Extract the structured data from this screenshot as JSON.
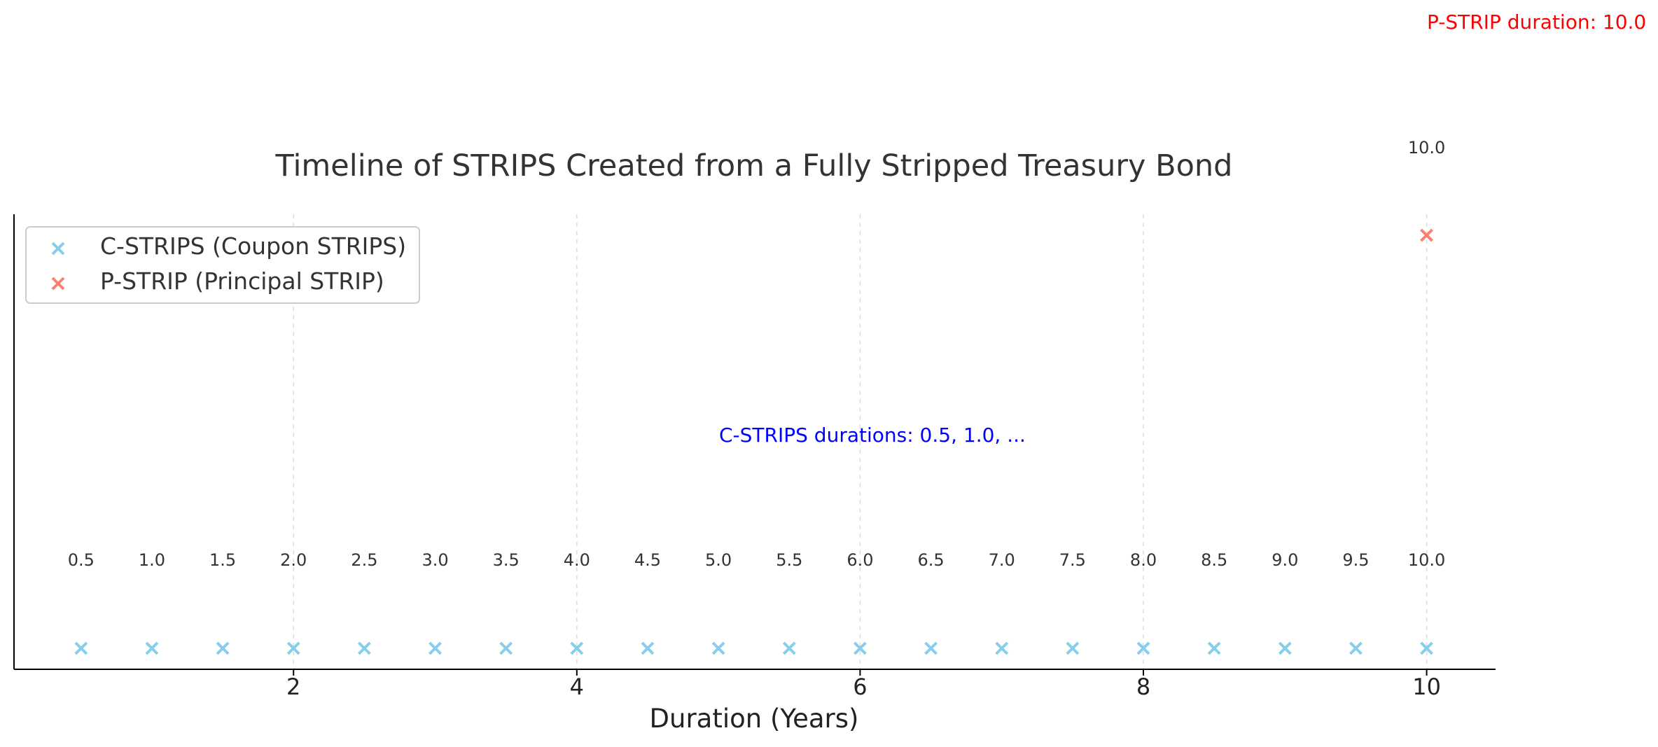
{
  "chart_data": {
    "type": "scatter",
    "title": "Timeline of STRIPS Created from a Fully Stripped Treasury Bond",
    "xlabel": "Duration (Years)",
    "ylabel": "",
    "xlim": [
      0.0,
      10.5
    ],
    "ylim": [
      0.98,
      1.15
    ],
    "x_ticks": [
      2,
      4,
      6,
      8,
      10
    ],
    "x_tick_labels": [
      "2",
      "4",
      "6",
      "8",
      "10"
    ],
    "grid": "vertical dashed at x ticks",
    "legend_position": "upper-left",
    "series": [
      {
        "name": "C-STRIPS (Coupon STRIPS)",
        "marker": "x",
        "color": "#87CEEB",
        "x": [
          0.5,
          1.0,
          1.5,
          2.0,
          2.5,
          3.0,
          3.5,
          4.0,
          4.5,
          5.0,
          5.5,
          6.0,
          6.5,
          7.0,
          7.5,
          8.0,
          8.5,
          9.0,
          9.5,
          10.0
        ],
        "y": [
          1,
          1,
          1,
          1,
          1,
          1,
          1,
          1,
          1,
          1,
          1,
          1,
          1,
          1,
          1,
          1,
          1,
          1,
          1,
          1
        ],
        "labels": [
          "0.5",
          "1.0",
          "1.5",
          "2.0",
          "2.5",
          "3.0",
          "3.5",
          "4.0",
          "4.5",
          "5.0",
          "5.5",
          "6.0",
          "6.5",
          "7.0",
          "7.5",
          "8.0",
          "8.5",
          "9.0",
          "9.5",
          "10.0"
        ]
      },
      {
        "name": "P-STRIP (Principal STRIP)",
        "marker": "x",
        "color": "#FA8072",
        "x": [
          10.0
        ],
        "y": [
          1.145
        ],
        "labels": [
          "10.0"
        ]
      }
    ],
    "annotations": [
      {
        "text": "C-STRIPS durations: 0.5, 1.0, ...",
        "color": "#0000FF"
      },
      {
        "text": "P-STRIP duration: 10.0",
        "color": "#FF0000"
      }
    ]
  }
}
